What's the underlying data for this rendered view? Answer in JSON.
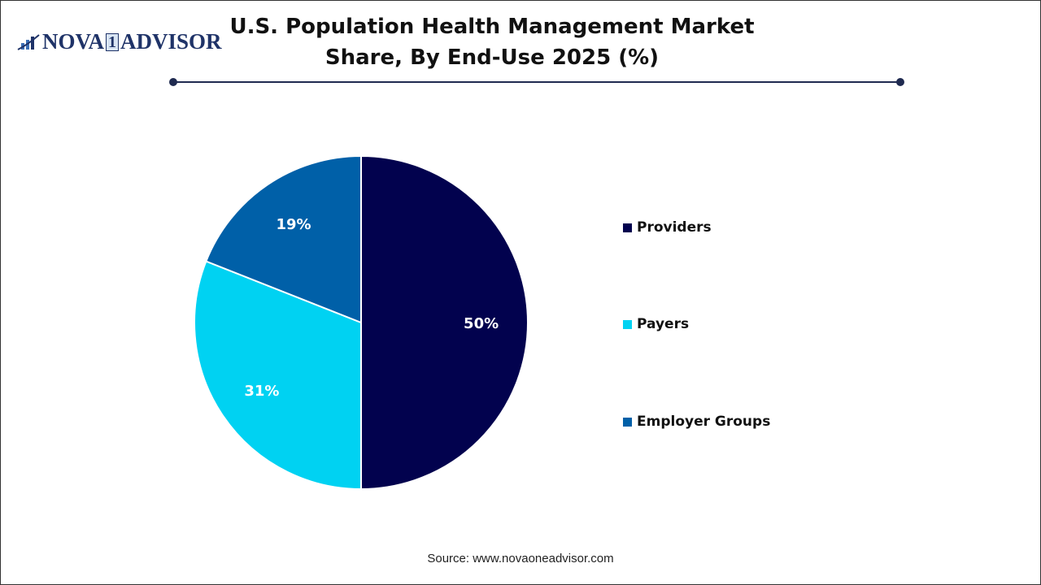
{
  "logo": {
    "text_main": "NOVA",
    "text_one": "1",
    "text_end": "ADVISOR"
  },
  "chart_data": {
    "type": "pie",
    "title": "U.S. Population Health Management Market Share, By End-Use 2025 (%)",
    "categories": [
      "Providers",
      "Payers",
      "Employer Groups"
    ],
    "values": [
      50,
      31,
      19
    ],
    "labels": [
      "50%",
      "31%",
      "19%"
    ],
    "colors": [
      "#02024e",
      "#00d2f2",
      "#0060a8"
    ],
    "legend_position": "right"
  },
  "source": "Source: www.novaoneadvisor.com"
}
